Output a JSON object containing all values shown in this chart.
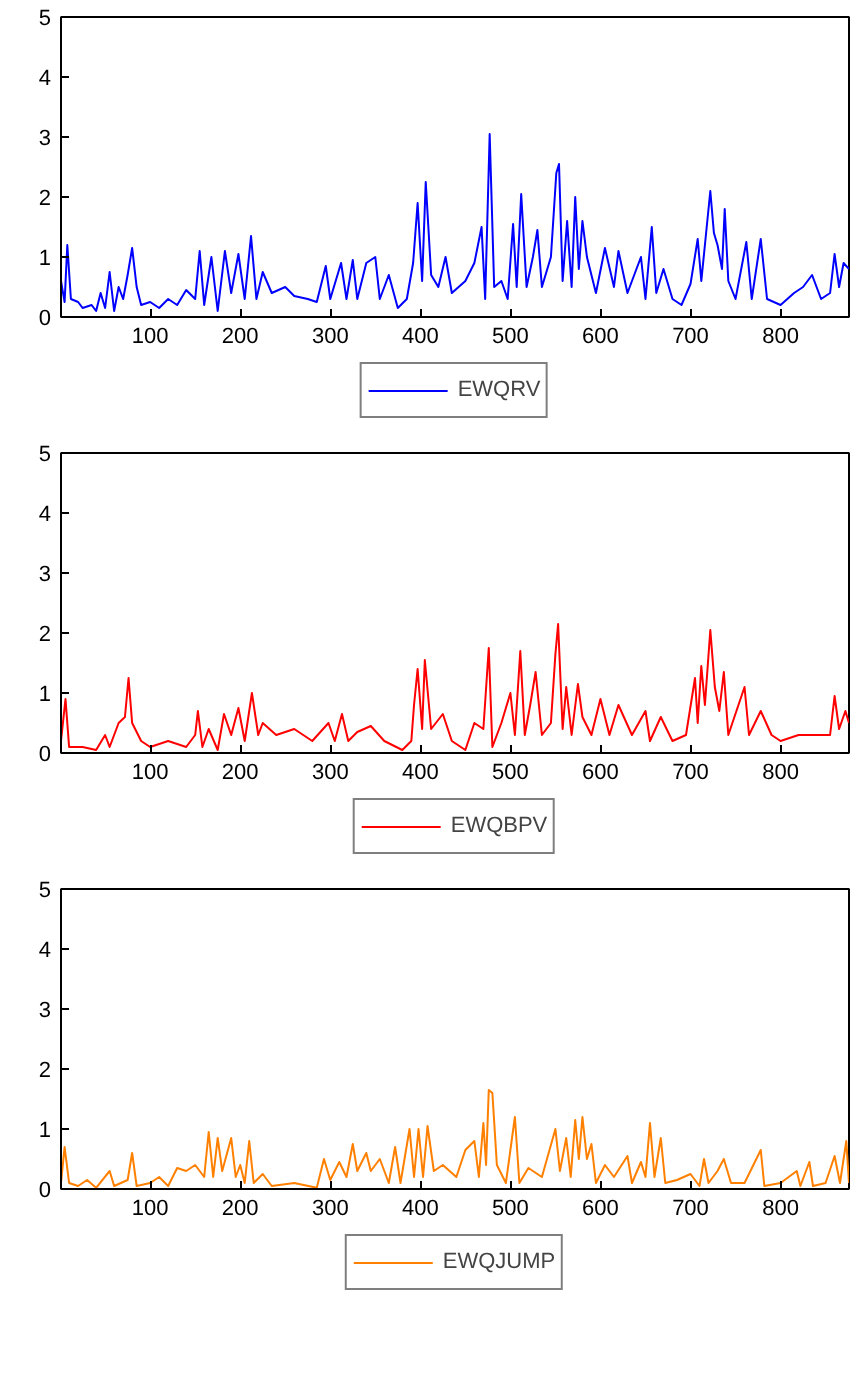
{
  "chart_data": [
    {
      "type": "line",
      "xlim": [
        1,
        876
      ],
      "ylim": [
        0,
        5
      ],
      "xticks": [
        100,
        200,
        300,
        400,
        500,
        600,
        700,
        800
      ],
      "yticks": [
        0,
        1,
        2,
        3,
        4,
        5
      ],
      "grid": false,
      "legend": "bottom",
      "x": [
        1,
        5,
        8,
        12,
        20,
        25,
        35,
        40,
        45,
        50,
        55,
        60,
        65,
        70,
        75,
        80,
        85,
        90,
        100,
        110,
        120,
        130,
        140,
        150,
        155,
        160,
        168,
        175,
        183,
        190,
        198,
        205,
        212,
        218,
        225,
        235,
        250,
        260,
        275,
        285,
        295,
        300,
        312,
        318,
        325,
        330,
        340,
        350,
        355,
        365,
        375,
        385,
        392,
        397,
        402,
        406,
        412,
        420,
        428,
        435,
        450,
        460,
        468,
        472,
        477,
        482,
        490,
        497,
        503,
        507,
        512,
        518,
        525,
        530,
        535,
        545,
        551,
        554,
        558,
        563,
        568,
        572,
        576,
        580,
        585,
        595,
        605,
        615,
        620,
        630,
        645,
        650,
        657,
        662,
        670,
        680,
        690,
        700,
        708,
        712,
        716,
        722,
        726,
        730,
        735,
        738,
        742,
        750,
        762,
        768,
        778,
        785,
        800,
        815,
        825,
        835,
        845,
        855,
        860,
        865,
        870,
        876
      ],
      "series": [
        {
          "name": "EWQRV",
          "color": "#0000ff",
          "values": [
            0.6,
            0.25,
            1.2,
            0.3,
            0.25,
            0.15,
            0.2,
            0.1,
            0.4,
            0.15,
            0.75,
            0.1,
            0.5,
            0.3,
            0.7,
            1.15,
            0.5,
            0.2,
            0.25,
            0.15,
            0.3,
            0.2,
            0.45,
            0.3,
            1.1,
            0.2,
            1.0,
            0.1,
            1.1,
            0.4,
            1.05,
            0.3,
            1.35,
            0.3,
            0.75,
            0.4,
            0.5,
            0.35,
            0.3,
            0.25,
            0.85,
            0.3,
            0.9,
            0.3,
            0.95,
            0.3,
            0.9,
            1.0,
            0.3,
            0.7,
            0.15,
            0.3,
            0.9,
            1.9,
            0.6,
            2.25,
            0.7,
            0.5,
            1.0,
            0.4,
            0.6,
            0.9,
            1.5,
            0.3,
            3.05,
            0.5,
            0.6,
            0.3,
            1.55,
            0.5,
            2.05,
            0.5,
            1.0,
            1.45,
            0.5,
            1.0,
            2.4,
            2.55,
            0.6,
            1.6,
            0.5,
            2.0,
            0.8,
            1.6,
            1.0,
            0.4,
            1.15,
            0.5,
            1.1,
            0.4,
            1.0,
            0.3,
            1.5,
            0.4,
            0.8,
            0.3,
            0.2,
            0.55,
            1.3,
            0.6,
            1.2,
            2.1,
            1.4,
            1.2,
            0.8,
            1.8,
            0.6,
            0.3,
            1.25,
            0.3,
            1.3,
            0.3,
            0.2,
            0.4,
            0.5,
            0.7,
            0.3,
            0.4,
            1.05,
            0.5,
            0.9,
            0.8
          ]
        }
      ]
    },
    {
      "type": "line",
      "xlim": [
        1,
        876
      ],
      "ylim": [
        0,
        5
      ],
      "xticks": [
        100,
        200,
        300,
        400,
        500,
        600,
        700,
        800
      ],
      "yticks": [
        0,
        1,
        2,
        3,
        4,
        5
      ],
      "grid": false,
      "legend": "bottom",
      "x": [
        1,
        6,
        10,
        25,
        40,
        50,
        55,
        65,
        72,
        76,
        80,
        90,
        100,
        120,
        140,
        150,
        153,
        158,
        165,
        175,
        182,
        190,
        198,
        205,
        213,
        220,
        225,
        240,
        260,
        280,
        298,
        305,
        313,
        320,
        330,
        345,
        360,
        380,
        390,
        393,
        397,
        402,
        405,
        412,
        425,
        435,
        450,
        460,
        470,
        476,
        480,
        490,
        500,
        505,
        511,
        516,
        522,
        528,
        535,
        545,
        550,
        553,
        558,
        562,
        568,
        575,
        580,
        590,
        600,
        610,
        620,
        635,
        650,
        655,
        667,
        680,
        695,
        705,
        708,
        712,
        716,
        722,
        727,
        732,
        737,
        742,
        760,
        765,
        778,
        790,
        800,
        820,
        840,
        855,
        860,
        865,
        872,
        876
      ],
      "series": [
        {
          "name": "EWQBPV",
          "color": "#ff0000",
          "values": [
            0.2,
            0.9,
            0.1,
            0.1,
            0.05,
            0.3,
            0.1,
            0.5,
            0.6,
            1.25,
            0.5,
            0.2,
            0.1,
            0.2,
            0.1,
            0.3,
            0.7,
            0.1,
            0.4,
            0.05,
            0.65,
            0.3,
            0.75,
            0.2,
            1.0,
            0.3,
            0.5,
            0.3,
            0.4,
            0.2,
            0.5,
            0.2,
            0.65,
            0.2,
            0.35,
            0.45,
            0.2,
            0.05,
            0.2,
            0.8,
            1.4,
            0.4,
            1.55,
            0.4,
            0.65,
            0.2,
            0.05,
            0.5,
            0.4,
            1.75,
            0.1,
            0.5,
            1.0,
            0.3,
            1.7,
            0.3,
            0.8,
            1.35,
            0.3,
            0.5,
            1.65,
            2.15,
            0.4,
            1.1,
            0.3,
            1.15,
            0.6,
            0.3,
            0.9,
            0.3,
            0.8,
            0.3,
            0.7,
            0.2,
            0.6,
            0.2,
            0.3,
            1.25,
            0.5,
            1.45,
            0.8,
            2.05,
            1.1,
            0.7,
            1.35,
            0.3,
            1.1,
            0.3,
            0.7,
            0.3,
            0.2,
            0.3,
            0.3,
            0.3,
            0.95,
            0.4,
            0.7,
            0.5
          ]
        }
      ]
    },
    {
      "type": "line",
      "xlim": [
        1,
        876
      ],
      "ylim": [
        0,
        5
      ],
      "xticks": [
        100,
        200,
        300,
        400,
        500,
        600,
        700,
        800
      ],
      "yticks": [
        0,
        1,
        2,
        3,
        4,
        5
      ],
      "grid": false,
      "legend": "bottom",
      "x": [
        1,
        5,
        10,
        20,
        30,
        40,
        55,
        60,
        75,
        80,
        85,
        100,
        110,
        120,
        130,
        140,
        150,
        160,
        165,
        170,
        175,
        180,
        190,
        195,
        200,
        205,
        210,
        215,
        225,
        235,
        260,
        285,
        293,
        300,
        310,
        318,
        325,
        330,
        340,
        345,
        355,
        365,
        372,
        378,
        388,
        393,
        398,
        403,
        408,
        415,
        425,
        440,
        450,
        460,
        465,
        470,
        473,
        476,
        480,
        485,
        495,
        505,
        510,
        520,
        535,
        550,
        555,
        562,
        567,
        572,
        576,
        580,
        585,
        590,
        595,
        605,
        615,
        630,
        635,
        645,
        650,
        655,
        660,
        667,
        672,
        685,
        700,
        710,
        715,
        720,
        730,
        737,
        745,
        760,
        778,
        782,
        800,
        818,
        822,
        832,
        836,
        850,
        860,
        866,
        873,
        876
      ],
      "series": [
        {
          "name": "EWQJUMP",
          "color": "#ff8000",
          "values": [
            0.1,
            0.7,
            0.1,
            0.05,
            0.15,
            0.02,
            0.3,
            0.05,
            0.15,
            0.6,
            0.05,
            0.1,
            0.2,
            0.05,
            0.35,
            0.3,
            0.4,
            0.2,
            0.95,
            0.2,
            0.85,
            0.3,
            0.85,
            0.2,
            0.4,
            0.1,
            0.8,
            0.1,
            0.25,
            0.05,
            0.1,
            0.02,
            0.5,
            0.15,
            0.45,
            0.2,
            0.75,
            0.3,
            0.6,
            0.3,
            0.5,
            0.1,
            0.7,
            0.1,
            1.0,
            0.2,
            1.0,
            0.2,
            1.05,
            0.3,
            0.4,
            0.2,
            0.65,
            0.8,
            0.2,
            1.1,
            0.4,
            1.65,
            1.6,
            0.4,
            0.1,
            1.2,
            0.1,
            0.35,
            0.2,
            1.0,
            0.3,
            0.85,
            0.2,
            1.15,
            0.5,
            1.2,
            0.5,
            0.75,
            0.1,
            0.4,
            0.2,
            0.55,
            0.1,
            0.45,
            0.2,
            1.1,
            0.2,
            0.85,
            0.1,
            0.15,
            0.25,
            0.05,
            0.5,
            0.1,
            0.3,
            0.5,
            0.1,
            0.1,
            0.65,
            0.05,
            0.1,
            0.3,
            0.05,
            0.45,
            0.05,
            0.1,
            0.55,
            0.1,
            0.8,
            0.1
          ]
        }
      ]
    }
  ]
}
